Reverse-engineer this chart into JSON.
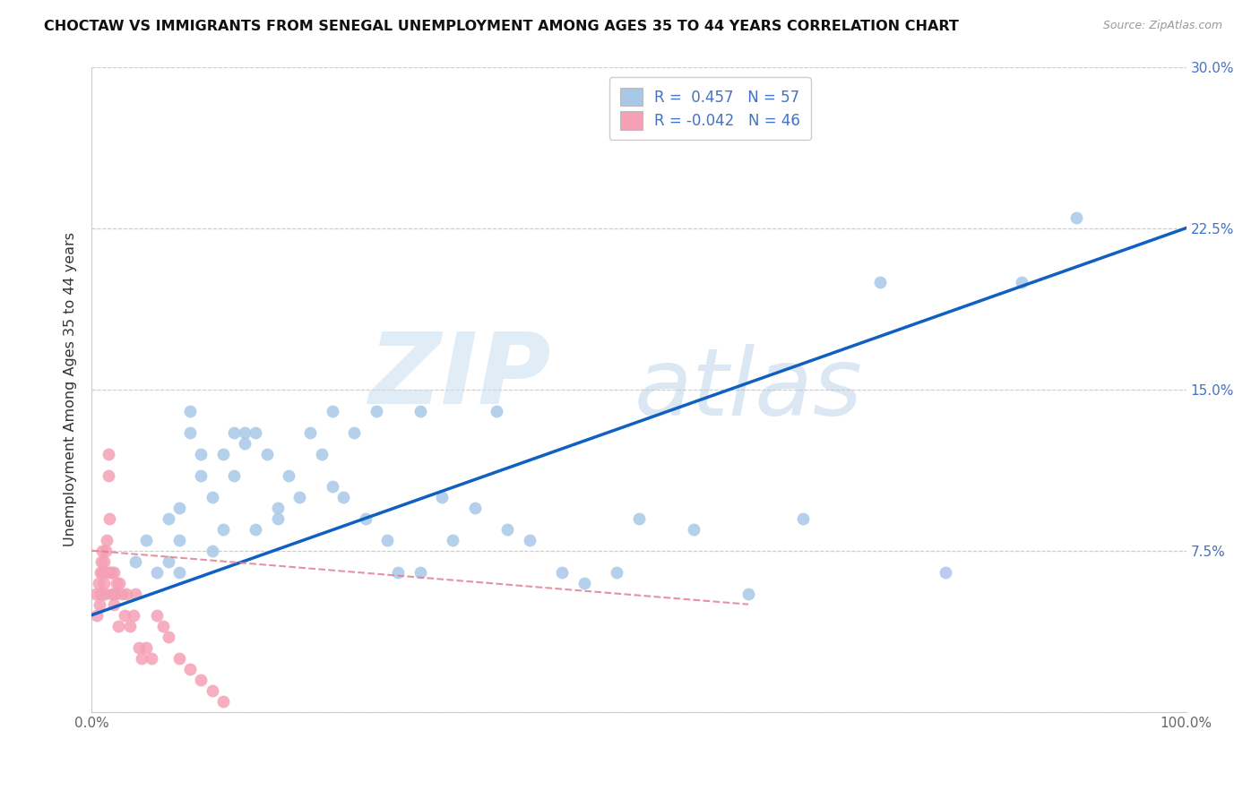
{
  "title": "CHOCTAW VS IMMIGRANTS FROM SENEGAL UNEMPLOYMENT AMONG AGES 35 TO 44 YEARS CORRELATION CHART",
  "source": "Source: ZipAtlas.com",
  "ylabel": "Unemployment Among Ages 35 to 44 years",
  "xlim": [
    0.0,
    1.0
  ],
  "ylim": [
    0.0,
    0.3
  ],
  "R_choctaw": 0.457,
  "N_choctaw": 57,
  "R_senegal": -0.042,
  "N_senegal": 46,
  "choctaw_color": "#a8c8e8",
  "senegal_color": "#f5a0b5",
  "choctaw_line_color": "#1060c0",
  "senegal_line_color": "#e08090",
  "background_color": "#ffffff",
  "choctaw_x": [
    0.02,
    0.04,
    0.05,
    0.06,
    0.07,
    0.07,
    0.08,
    0.08,
    0.08,
    0.09,
    0.09,
    0.1,
    0.1,
    0.11,
    0.11,
    0.12,
    0.12,
    0.13,
    0.13,
    0.14,
    0.14,
    0.15,
    0.15,
    0.16,
    0.17,
    0.17,
    0.18,
    0.19,
    0.2,
    0.21,
    0.22,
    0.22,
    0.23,
    0.24,
    0.25,
    0.26,
    0.27,
    0.28,
    0.3,
    0.3,
    0.32,
    0.33,
    0.35,
    0.37,
    0.38,
    0.4,
    0.43,
    0.45,
    0.48,
    0.5,
    0.55,
    0.6,
    0.65,
    0.72,
    0.78,
    0.85,
    0.9
  ],
  "choctaw_y": [
    0.055,
    0.07,
    0.08,
    0.065,
    0.07,
    0.09,
    0.095,
    0.065,
    0.08,
    0.13,
    0.14,
    0.12,
    0.11,
    0.1,
    0.075,
    0.12,
    0.085,
    0.13,
    0.11,
    0.125,
    0.13,
    0.13,
    0.085,
    0.12,
    0.095,
    0.09,
    0.11,
    0.1,
    0.13,
    0.12,
    0.14,
    0.105,
    0.1,
    0.13,
    0.09,
    0.14,
    0.08,
    0.065,
    0.065,
    0.14,
    0.1,
    0.08,
    0.095,
    0.14,
    0.085,
    0.08,
    0.065,
    0.06,
    0.065,
    0.09,
    0.085,
    0.055,
    0.09,
    0.2,
    0.065,
    0.2,
    0.23
  ],
  "senegal_x": [
    0.004,
    0.005,
    0.006,
    0.007,
    0.008,
    0.008,
    0.009,
    0.01,
    0.01,
    0.01,
    0.011,
    0.011,
    0.012,
    0.012,
    0.013,
    0.014,
    0.015,
    0.015,
    0.016,
    0.017,
    0.018,
    0.019,
    0.02,
    0.02,
    0.022,
    0.023,
    0.024,
    0.025,
    0.028,
    0.03,
    0.032,
    0.035,
    0.038,
    0.04,
    0.043,
    0.046,
    0.05,
    0.055,
    0.06,
    0.065,
    0.07,
    0.08,
    0.09,
    0.1,
    0.11,
    0.12
  ],
  "senegal_y": [
    0.055,
    0.045,
    0.06,
    0.05,
    0.065,
    0.055,
    0.07,
    0.075,
    0.065,
    0.055,
    0.07,
    0.06,
    0.055,
    0.065,
    0.075,
    0.08,
    0.11,
    0.12,
    0.09,
    0.065,
    0.065,
    0.055,
    0.05,
    0.065,
    0.055,
    0.06,
    0.04,
    0.06,
    0.055,
    0.045,
    0.055,
    0.04,
    0.045,
    0.055,
    0.03,
    0.025,
    0.03,
    0.025,
    0.045,
    0.04,
    0.035,
    0.025,
    0.02,
    0.015,
    0.01,
    0.005
  ]
}
